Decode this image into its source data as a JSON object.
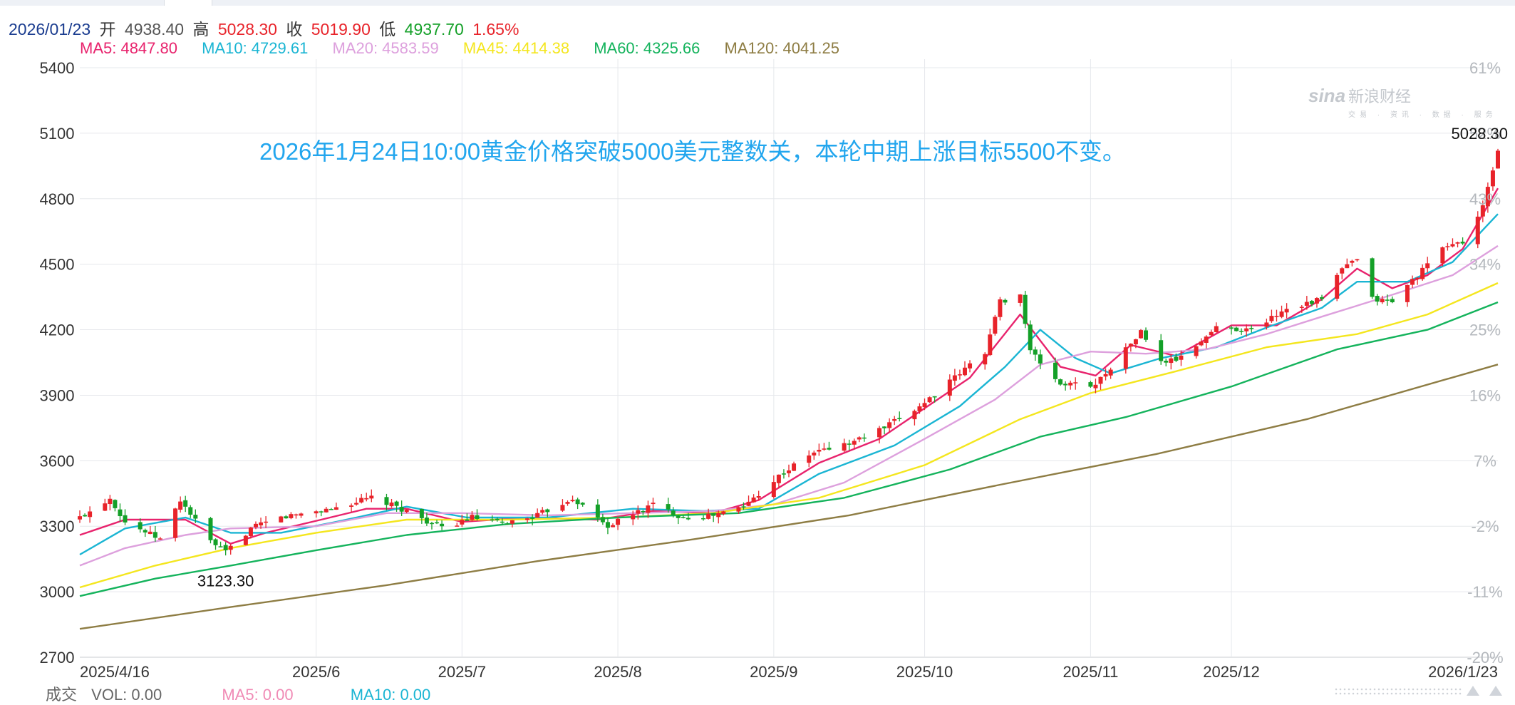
{
  "header": {
    "date": "2026/01/23",
    "open_label": "开",
    "open": "4938.40",
    "high_label": "高",
    "high": "5028.30",
    "close_label": "收",
    "close": "5019.90",
    "low_label": "低",
    "low": "4937.70",
    "change": "1.65%"
  },
  "ma_legend": [
    {
      "label": "MA5: 4847.80",
      "color": "#e8236d"
    },
    {
      "label": "MA10: 4729.61",
      "color": "#1ab5d3"
    },
    {
      "label": "MA20: 4583.59",
      "color": "#dda0dd"
    },
    {
      "label": "MA45: 4414.38",
      "color": "#f4e61e"
    },
    {
      "label": "MA60: 4325.66",
      "color": "#14b35c"
    },
    {
      "label": "MA120: 4041.25",
      "color": "#8e7d44"
    }
  ],
  "volume_legend": {
    "title": "成交",
    "vol": "VOL: 0.00",
    "ma5": "MA5: 0.00",
    "ma10": "MA10: 0.00"
  },
  "annotation": "2026年1月24日10:00黄金价格突破5000美元整数关，本轮中期上涨目标5500不变。",
  "watermark": {
    "brand": "sina",
    "name": "新浪财经",
    "sub": "交易 · 资讯 · 数据 · 服务"
  },
  "colors": {
    "up": "#e8232a",
    "down": "#14a028",
    "grid": "#e6e8ec",
    "axis_text": "#333333",
    "pct_text": "#b4b8bd"
  },
  "chart_data": {
    "type": "candlestick",
    "ylim": [
      2700,
      5400
    ],
    "yticks": [
      5400,
      5100,
      4800,
      4500,
      4200,
      3900,
      3600,
      3300,
      3000,
      2700
    ],
    "pct_ticks": [
      "61%",
      "52%",
      "43%",
      "34%",
      "25%",
      "16%",
      "7%",
      "-2%",
      "-11%",
      "-20%"
    ],
    "x_range": [
      "2025-04-16",
      "2026-01-23"
    ],
    "xticks": [
      {
        "date": "2025-04-16",
        "label": "2025/4/16"
      },
      {
        "date": "2025-06-02",
        "label": "2025/6"
      },
      {
        "date": "2025-07-01",
        "label": "2025/7"
      },
      {
        "date": "2025-08-01",
        "label": "2025/8"
      },
      {
        "date": "2025-09-01",
        "label": "2025/9"
      },
      {
        "date": "2025-10-01",
        "label": "2025/10"
      },
      {
        "date": "2025-11-03",
        "label": "2025/11"
      },
      {
        "date": "2025-12-01",
        "label": "2025/12"
      },
      {
        "date": "2026-01-23",
        "label": "2026/1/23"
      }
    ],
    "max_marker": {
      "label": "5028.30",
      "value": 5028.3,
      "date": "2026-01-23"
    },
    "min_marker": {
      "label": "3123.30",
      "value": 3123.3,
      "date": "2025-05-15"
    },
    "close_path": [
      [
        "2025-04-16",
        3340
      ],
      [
        "2025-04-22",
        3430
      ],
      [
        "2025-04-25",
        3320
      ],
      [
        "2025-05-02",
        3240
      ],
      [
        "2025-05-06",
        3420
      ],
      [
        "2025-05-12",
        3230
      ],
      [
        "2025-05-15",
        3180
      ],
      [
        "2025-05-20",
        3290
      ],
      [
        "2025-05-26",
        3340
      ],
      [
        "2025-06-02",
        3370
      ],
      [
        "2025-06-05",
        3380
      ],
      [
        "2025-06-13",
        3430
      ],
      [
        "2025-06-20",
        3370
      ],
      [
        "2025-06-27",
        3290
      ],
      [
        "2025-07-03",
        3340
      ],
      [
        "2025-07-09",
        3310
      ],
      [
        "2025-07-16",
        3350
      ],
      [
        "2025-07-23",
        3430
      ],
      [
        "2025-07-30",
        3300
      ],
      [
        "2025-08-08",
        3400
      ],
      [
        "2025-08-14",
        3340
      ],
      [
        "2025-08-20",
        3350
      ],
      [
        "2025-08-26",
        3390
      ],
      [
        "2025-09-02",
        3530
      ],
      [
        "2025-09-09",
        3640
      ],
      [
        "2025-09-16",
        3680
      ],
      [
        "2025-09-23",
        3750
      ],
      [
        "2025-09-30",
        3850
      ],
      [
        "2025-10-07",
        3980
      ],
      [
        "2025-10-13",
        4100
      ],
      [
        "2025-10-16",
        4330
      ],
      [
        "2025-10-20",
        4360
      ],
      [
        "2025-10-22",
        4100
      ],
      [
        "2025-10-28",
        3950
      ],
      [
        "2025-11-04",
        3950
      ],
      [
        "2025-11-10",
        4110
      ],
      [
        "2025-11-13",
        4190
      ],
      [
        "2025-11-17",
        4050
      ],
      [
        "2025-11-21",
        4070
      ],
      [
        "2025-11-28",
        4210
      ],
      [
        "2025-12-05",
        4200
      ],
      [
        "2025-12-12",
        4300
      ],
      [
        "2025-12-19",
        4340
      ],
      [
        "2025-12-23",
        4480
      ],
      [
        "2025-12-26",
        4520
      ],
      [
        "2025-12-29",
        4340
      ],
      [
        "2026-01-02",
        4330
      ],
      [
        "2026-01-07",
        4450
      ],
      [
        "2026-01-13",
        4590
      ],
      [
        "2026-01-16",
        4600
      ],
      [
        "2026-01-20",
        4760
      ],
      [
        "2026-01-23",
        5020
      ]
    ],
    "series": [
      {
        "name": "MA5",
        "color": "#e8236d",
        "points": [
          [
            "2025-04-16",
            3260
          ],
          [
            "2025-04-25",
            3330
          ],
          [
            "2025-05-07",
            3330
          ],
          [
            "2025-05-16",
            3220
          ],
          [
            "2025-05-23",
            3270
          ],
          [
            "2025-06-03",
            3330
          ],
          [
            "2025-06-12",
            3380
          ],
          [
            "2025-06-20",
            3380
          ],
          [
            "2025-07-01",
            3320
          ],
          [
            "2025-07-14",
            3340
          ],
          [
            "2025-07-28",
            3330
          ],
          [
            "2025-08-08",
            3370
          ],
          [
            "2025-08-20",
            3360
          ],
          [
            "2025-08-29",
            3420
          ],
          [
            "2025-09-10",
            3590
          ],
          [
            "2025-09-22",
            3700
          ],
          [
            "2025-10-01",
            3840
          ],
          [
            "2025-10-10",
            3980
          ],
          [
            "2025-10-20",
            4270
          ],
          [
            "2025-10-28",
            4030
          ],
          [
            "2025-11-04",
            3990
          ],
          [
            "2025-11-11",
            4130
          ],
          [
            "2025-11-20",
            4080
          ],
          [
            "2025-12-01",
            4220
          ],
          [
            "2025-12-10",
            4220
          ],
          [
            "2025-12-19",
            4340
          ],
          [
            "2025-12-26",
            4480
          ],
          [
            "2026-01-02",
            4390
          ],
          [
            "2026-01-09",
            4450
          ],
          [
            "2026-01-16",
            4570
          ],
          [
            "2026-01-23",
            4848
          ]
        ]
      },
      {
        "name": "MA10",
        "color": "#1ab5d3",
        "points": [
          [
            "2025-04-16",
            3170
          ],
          [
            "2025-04-25",
            3290
          ],
          [
            "2025-05-07",
            3340
          ],
          [
            "2025-05-16",
            3270
          ],
          [
            "2025-05-26",
            3270
          ],
          [
            "2025-06-06",
            3320
          ],
          [
            "2025-06-20",
            3390
          ],
          [
            "2025-07-02",
            3340
          ],
          [
            "2025-07-18",
            3340
          ],
          [
            "2025-08-04",
            3380
          ],
          [
            "2025-08-18",
            3370
          ],
          [
            "2025-08-29",
            3380
          ],
          [
            "2025-09-10",
            3540
          ],
          [
            "2025-09-25",
            3670
          ],
          [
            "2025-10-08",
            3850
          ],
          [
            "2025-10-17",
            4030
          ],
          [
            "2025-10-24",
            4200
          ],
          [
            "2025-10-31",
            4070
          ],
          [
            "2025-11-07",
            4000
          ],
          [
            "2025-11-17",
            4070
          ],
          [
            "2025-11-28",
            4120
          ],
          [
            "2025-12-08",
            4210
          ],
          [
            "2025-12-19",
            4300
          ],
          [
            "2025-12-26",
            4420
          ],
          [
            "2026-01-05",
            4420
          ],
          [
            "2026-01-14",
            4510
          ],
          [
            "2026-01-23",
            4730
          ]
        ]
      },
      {
        "name": "MA20",
        "color": "#dda0dd",
        "points": [
          [
            "2025-04-16",
            3120
          ],
          [
            "2025-04-25",
            3200
          ],
          [
            "2025-05-07",
            3260
          ],
          [
            "2025-05-16",
            3290
          ],
          [
            "2025-06-02",
            3300
          ],
          [
            "2025-06-16",
            3360
          ],
          [
            "2025-07-01",
            3360
          ],
          [
            "2025-07-18",
            3350
          ],
          [
            "2025-08-04",
            3360
          ],
          [
            "2025-08-20",
            3370
          ],
          [
            "2025-09-01",
            3400
          ],
          [
            "2025-09-15",
            3500
          ],
          [
            "2025-10-01",
            3700
          ],
          [
            "2025-10-15",
            3880
          ],
          [
            "2025-10-24",
            4040
          ],
          [
            "2025-11-03",
            4100
          ],
          [
            "2025-11-14",
            4090
          ],
          [
            "2025-11-26",
            4110
          ],
          [
            "2025-12-08",
            4180
          ],
          [
            "2025-12-19",
            4260
          ],
          [
            "2026-01-02",
            4360
          ],
          [
            "2026-01-14",
            4450
          ],
          [
            "2026-01-23",
            4584
          ]
        ]
      },
      {
        "name": "MA45",
        "color": "#f4e61e",
        "points": [
          [
            "2025-04-16",
            3020
          ],
          [
            "2025-05-01",
            3120
          ],
          [
            "2025-05-16",
            3200
          ],
          [
            "2025-06-02",
            3270
          ],
          [
            "2025-06-20",
            3330
          ],
          [
            "2025-07-10",
            3330
          ],
          [
            "2025-08-01",
            3340
          ],
          [
            "2025-08-20",
            3360
          ],
          [
            "2025-09-10",
            3430
          ],
          [
            "2025-10-01",
            3580
          ],
          [
            "2025-10-20",
            3790
          ],
          [
            "2025-11-03",
            3910
          ],
          [
            "2025-11-20",
            4010
          ],
          [
            "2025-12-08",
            4120
          ],
          [
            "2025-12-26",
            4180
          ],
          [
            "2026-01-09",
            4270
          ],
          [
            "2026-01-23",
            4414
          ]
        ]
      },
      {
        "name": "MA60",
        "color": "#14b35c",
        "points": [
          [
            "2025-04-16",
            2980
          ],
          [
            "2025-05-01",
            3060
          ],
          [
            "2025-05-16",
            3120
          ],
          [
            "2025-06-02",
            3190
          ],
          [
            "2025-06-20",
            3260
          ],
          [
            "2025-07-10",
            3310
          ],
          [
            "2025-08-01",
            3340
          ],
          [
            "2025-08-25",
            3360
          ],
          [
            "2025-09-15",
            3430
          ],
          [
            "2025-10-06",
            3560
          ],
          [
            "2025-10-24",
            3710
          ],
          [
            "2025-11-10",
            3800
          ],
          [
            "2025-12-01",
            3940
          ],
          [
            "2025-12-22",
            4110
          ],
          [
            "2026-01-09",
            4200
          ],
          [
            "2026-01-23",
            4326
          ]
        ]
      },
      {
        "name": "MA120",
        "color": "#8e7d44",
        "points": [
          [
            "2025-04-16",
            2830
          ],
          [
            "2025-05-16",
            2930
          ],
          [
            "2025-06-16",
            3030
          ],
          [
            "2025-07-16",
            3140
          ],
          [
            "2025-08-16",
            3240
          ],
          [
            "2025-09-16",
            3350
          ],
          [
            "2025-10-16",
            3490
          ],
          [
            "2025-11-16",
            3630
          ],
          [
            "2025-12-16",
            3790
          ],
          [
            "2026-01-23",
            4041
          ]
        ]
      }
    ]
  }
}
